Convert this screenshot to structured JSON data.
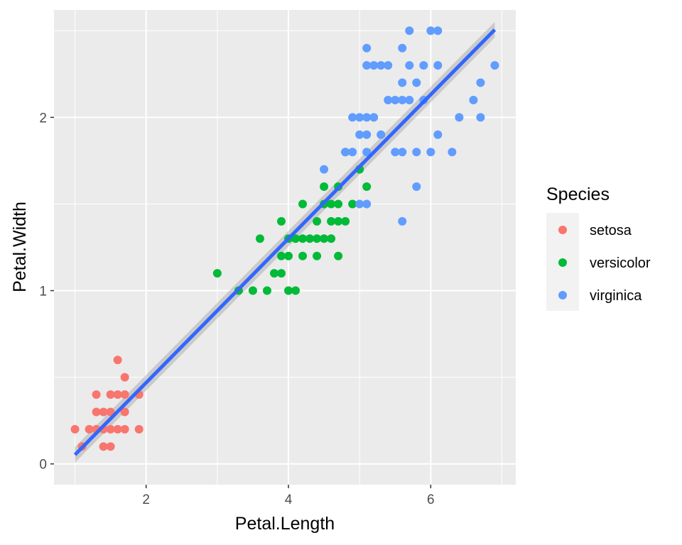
{
  "chart_data": {
    "type": "scatter",
    "title": "",
    "xlabel": "Petal.Length",
    "ylabel": "Petal.Width",
    "xlim": [
      0.705,
      7.195
    ],
    "ylim": [
      -0.12,
      2.62
    ],
    "x_ticks": [
      2,
      4,
      6
    ],
    "y_ticks": [
      0,
      1,
      2
    ],
    "grid": true,
    "legend": {
      "title": "Species",
      "position": "right"
    },
    "colors": {
      "panel_background": "#ebebeb",
      "grid": "#ffffff",
      "smooth_line": "#3366ff",
      "confidence_band": "#999999"
    },
    "series": [
      {
        "name": "setosa",
        "color": "#f8766d",
        "points": [
          [
            1.0,
            0.2
          ],
          [
            1.1,
            0.1
          ],
          [
            1.2,
            0.2
          ],
          [
            1.3,
            0.2
          ],
          [
            1.3,
            0.3
          ],
          [
            1.3,
            0.4
          ],
          [
            1.4,
            0.1
          ],
          [
            1.4,
            0.2
          ],
          [
            1.4,
            0.3
          ],
          [
            1.5,
            0.1
          ],
          [
            1.5,
            0.2
          ],
          [
            1.5,
            0.3
          ],
          [
            1.5,
            0.4
          ],
          [
            1.6,
            0.2
          ],
          [
            1.6,
            0.4
          ],
          [
            1.6,
            0.6
          ],
          [
            1.7,
            0.2
          ],
          [
            1.7,
            0.3
          ],
          [
            1.7,
            0.4
          ],
          [
            1.7,
            0.5
          ],
          [
            1.9,
            0.2
          ],
          [
            1.9,
            0.4
          ]
        ]
      },
      {
        "name": "versicolor",
        "color": "#00ba38",
        "points": [
          [
            3.0,
            1.1
          ],
          [
            3.3,
            1.0
          ],
          [
            3.5,
            1.0
          ],
          [
            3.6,
            1.3
          ],
          [
            3.7,
            1.0
          ],
          [
            3.8,
            1.1
          ],
          [
            3.9,
            1.1
          ],
          [
            3.9,
            1.2
          ],
          [
            3.9,
            1.4
          ],
          [
            4.0,
            1.0
          ],
          [
            4.0,
            1.2
          ],
          [
            4.0,
            1.3
          ],
          [
            4.1,
            1.0
          ],
          [
            4.1,
            1.3
          ],
          [
            4.2,
            1.2
          ],
          [
            4.2,
            1.3
          ],
          [
            4.2,
            1.5
          ],
          [
            4.3,
            1.3
          ],
          [
            4.4,
            1.2
          ],
          [
            4.4,
            1.3
          ],
          [
            4.4,
            1.4
          ],
          [
            4.5,
            1.3
          ],
          [
            4.5,
            1.5
          ],
          [
            4.5,
            1.6
          ],
          [
            4.6,
            1.3
          ],
          [
            4.6,
            1.4
          ],
          [
            4.6,
            1.5
          ],
          [
            4.7,
            1.2
          ],
          [
            4.7,
            1.4
          ],
          [
            4.7,
            1.5
          ],
          [
            4.7,
            1.6
          ],
          [
            4.8,
            1.4
          ],
          [
            4.8,
            1.8
          ],
          [
            4.9,
            1.5
          ],
          [
            5.0,
            1.7
          ],
          [
            5.1,
            1.6
          ]
        ]
      },
      {
        "name": "virginica",
        "color": "#619cff",
        "points": [
          [
            4.5,
            1.7
          ],
          [
            4.8,
            1.8
          ],
          [
            4.9,
            1.8
          ],
          [
            4.9,
            2.0
          ],
          [
            5.0,
            1.5
          ],
          [
            5.0,
            1.9
          ],
          [
            5.0,
            2.0
          ],
          [
            5.1,
            1.5
          ],
          [
            5.1,
            1.8
          ],
          [
            5.1,
            1.9
          ],
          [
            5.1,
            2.0
          ],
          [
            5.1,
            2.3
          ],
          [
            5.1,
            2.4
          ],
          [
            5.2,
            2.0
          ],
          [
            5.2,
            2.3
          ],
          [
            5.3,
            1.9
          ],
          [
            5.3,
            2.3
          ],
          [
            5.4,
            2.1
          ],
          [
            5.4,
            2.3
          ],
          [
            5.5,
            1.8
          ],
          [
            5.5,
            2.1
          ],
          [
            5.6,
            1.4
          ],
          [
            5.6,
            1.8
          ],
          [
            5.6,
            2.1
          ],
          [
            5.6,
            2.2
          ],
          [
            5.6,
            2.4
          ],
          [
            5.7,
            2.1
          ],
          [
            5.7,
            2.3
          ],
          [
            5.7,
            2.5
          ],
          [
            5.8,
            1.6
          ],
          [
            5.8,
            1.8
          ],
          [
            5.8,
            2.2
          ],
          [
            5.9,
            2.1
          ],
          [
            5.9,
            2.3
          ],
          [
            6.0,
            1.8
          ],
          [
            6.0,
            2.5
          ],
          [
            6.1,
            1.9
          ],
          [
            6.1,
            2.3
          ],
          [
            6.1,
            2.5
          ],
          [
            6.3,
            1.8
          ],
          [
            6.4,
            2.0
          ],
          [
            6.6,
            2.1
          ],
          [
            6.7,
            2.0
          ],
          [
            6.7,
            2.2
          ],
          [
            6.9,
            2.3
          ]
        ]
      }
    ],
    "smooth": {
      "method": "linear",
      "x_range": [
        1.0,
        6.9
      ],
      "intercept": -0.3631,
      "slope": 0.4158,
      "band_halfwidth": 0.045
    }
  }
}
